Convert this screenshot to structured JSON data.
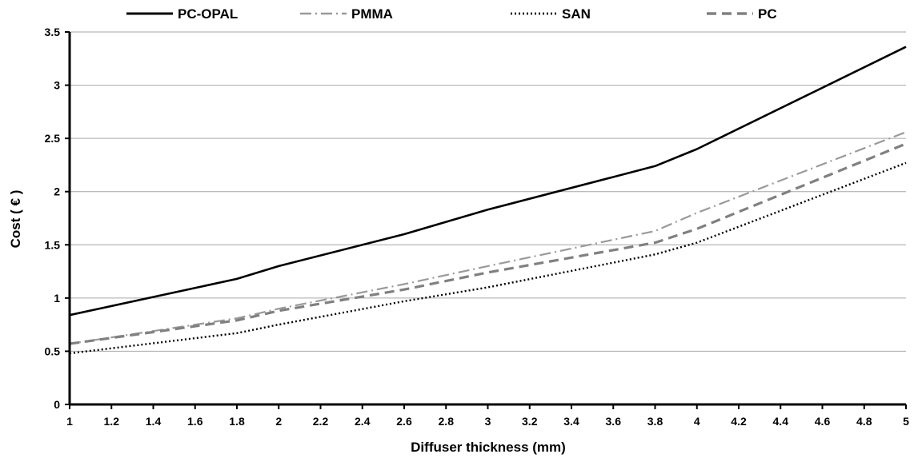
{
  "chart_data": {
    "type": "line",
    "title": "",
    "xlabel": "Diffuser thickness (mm)",
    "ylabel": "Cost ( € )",
    "xlim": [
      1,
      5
    ],
    "ylim": [
      0,
      3.5
    ],
    "x_ticks": [
      "1",
      "1.2",
      "1.4",
      "1.6",
      "1.8",
      "2",
      "2.2",
      "2.4",
      "2.6",
      "2.8",
      "3",
      "3.2",
      "3.4",
      "3.6",
      "3.8",
      "4",
      "4.2",
      "4.4",
      "4.6",
      "4.8",
      "5"
    ],
    "y_ticks": [
      "0",
      "0.5",
      "1",
      "1.5",
      "2",
      "2.5",
      "3",
      "3.5"
    ],
    "grid": true,
    "legend_position": "top",
    "x": [
      1,
      1.8,
      2,
      2.6,
      3,
      3.8,
      4,
      5
    ],
    "series": [
      {
        "name": "PC-OPAL",
        "style": "solid",
        "color": "#000000",
        "values": [
          0.84,
          1.18,
          1.3,
          1.6,
          1.83,
          2.24,
          2.4,
          3.36
        ]
      },
      {
        "name": "PMMA",
        "style": "dash-dot",
        "color": "#9a9a9a",
        "values": [
          0.57,
          0.81,
          0.9,
          1.13,
          1.3,
          1.63,
          1.8,
          2.56
        ]
      },
      {
        "name": "SAN",
        "style": "dotted",
        "color": "#000000",
        "values": [
          0.48,
          0.67,
          0.75,
          0.97,
          1.1,
          1.41,
          1.52,
          2.27
        ]
      },
      {
        "name": "PC",
        "style": "dashed",
        "color": "#808080",
        "values": [
          0.57,
          0.79,
          0.88,
          1.08,
          1.24,
          1.52,
          1.65,
          2.45
        ]
      }
    ]
  }
}
